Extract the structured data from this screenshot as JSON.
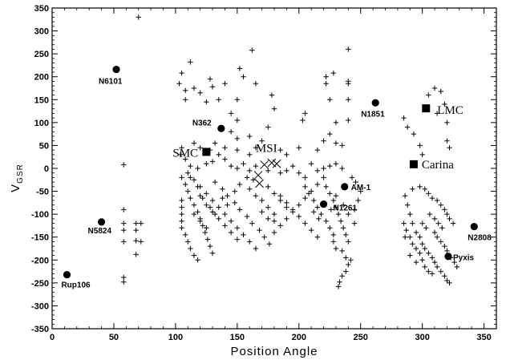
{
  "chart_data": {
    "type": "scatter",
    "xlabel": "Position Angle",
    "ylabel_main": "V",
    "ylabel_sub": "GSR",
    "xlim": [
      0,
      360
    ],
    "ylim": [
      -350,
      350
    ],
    "xticks": [
      0,
      50,
      100,
      150,
      200,
      250,
      300,
      350
    ],
    "yticks": [
      350,
      300,
      250,
      200,
      150,
      100,
      50,
      0,
      -50,
      -100,
      -150,
      -200,
      -250,
      -300,
      -350
    ],
    "clusters": [
      {
        "name": "N6101",
        "x": 52,
        "y": 216
      },
      {
        "name": "N362",
        "x": 137,
        "y": 87
      },
      {
        "name": "N1851",
        "x": 262,
        "y": 143
      },
      {
        "name": "AM-1",
        "x": 237,
        "y": -40
      },
      {
        "name": "N1261",
        "x": 220,
        "y": -78
      },
      {
        "name": "N5824",
        "x": 40,
        "y": -117
      },
      {
        "name": "Rup106",
        "x": 12,
        "y": -232
      },
      {
        "name": "N2808",
        "x": 342,
        "y": -127
      },
      {
        "name": "Pyxis",
        "x": 321,
        "y": -192
      }
    ],
    "dwarfs": [
      {
        "name": "SMC",
        "x": 125,
        "y": 36
      },
      {
        "name": "Carina",
        "x": 293,
        "y": 9
      },
      {
        "name": "LMC",
        "x": 303,
        "y": 131
      }
    ],
    "msi_label": "MSI",
    "msi": [
      [
        167,
        -15
      ],
      [
        172,
        8
      ],
      [
        178,
        12
      ],
      [
        182,
        10
      ],
      [
        168,
        -33
      ]
    ],
    "stars": [
      [
        70,
        330
      ],
      [
        105,
        208
      ],
      [
        112,
        232
      ],
      [
        103,
        185
      ],
      [
        108,
        170
      ],
      [
        115,
        175
      ],
      [
        120,
        165
      ],
      [
        108,
        150
      ],
      [
        128,
        195
      ],
      [
        130,
        178
      ],
      [
        125,
        145
      ],
      [
        140,
        185
      ],
      [
        135,
        150
      ],
      [
        150,
        150
      ],
      [
        152,
        218
      ],
      [
        162,
        258
      ],
      [
        155,
        200
      ],
      [
        165,
        185
      ],
      [
        178,
        160
      ],
      [
        180,
        130
      ],
      [
        205,
        120
      ],
      [
        203,
        105
      ],
      [
        222,
        185
      ],
      [
        222,
        200
      ],
      [
        225,
        150
      ],
      [
        228,
        208
      ],
      [
        230,
        100
      ],
      [
        240,
        260
      ],
      [
        240,
        190
      ],
      [
        240,
        185
      ],
      [
        240,
        150
      ],
      [
        240,
        105
      ],
      [
        145,
        120
      ],
      [
        150,
        105
      ],
      [
        160,
        70
      ],
      [
        170,
        60
      ],
      [
        175,
        90
      ],
      [
        145,
        80
      ],
      [
        150,
        65
      ],
      [
        200,
        45
      ],
      [
        215,
        40
      ],
      [
        220,
        60
      ],
      [
        230,
        55
      ],
      [
        225,
        75
      ],
      [
        235,
        50
      ],
      [
        185,
        40
      ],
      [
        190,
        30
      ],
      [
        160,
        30
      ],
      [
        165,
        45
      ],
      [
        150,
        40
      ],
      [
        140,
        45
      ],
      [
        132,
        55
      ],
      [
        128,
        40
      ],
      [
        120,
        45
      ],
      [
        115,
        55
      ],
      [
        105,
        45
      ],
      [
        104,
        30
      ],
      [
        108,
        20
      ],
      [
        112,
        5
      ],
      [
        118,
        0
      ],
      [
        125,
        10
      ],
      [
        130,
        15
      ],
      [
        135,
        30
      ],
      [
        140,
        20
      ],
      [
        145,
        5
      ],
      [
        150,
        0
      ],
      [
        155,
        10
      ],
      [
        160,
        -5
      ],
      [
        165,
        5
      ],
      [
        175,
        -5
      ],
      [
        185,
        -10
      ],
      [
        190,
        -5
      ],
      [
        195,
        5
      ],
      [
        200,
        -10
      ],
      [
        205,
        -20
      ],
      [
        210,
        10
      ],
      [
        215,
        -5
      ],
      [
        220,
        0
      ],
      [
        225,
        5
      ],
      [
        230,
        10
      ],
      [
        235,
        0
      ],
      [
        58,
        8
      ],
      [
        58,
        -90
      ],
      [
        58,
        -120
      ],
      [
        58,
        -135
      ],
      [
        58,
        -160
      ],
      [
        58,
        -238
      ],
      [
        58,
        -248
      ],
      [
        68,
        -120
      ],
      [
        68,
        -135
      ],
      [
        68,
        -158
      ],
      [
        68,
        -188
      ],
      [
        72,
        -120
      ],
      [
        72,
        -160
      ],
      [
        105,
        -20
      ],
      [
        108,
        -35
      ],
      [
        110,
        -50
      ],
      [
        112,
        -65
      ],
      [
        115,
        -80
      ],
      [
        118,
        -95
      ],
      [
        120,
        -110
      ],
      [
        122,
        -125
      ],
      [
        124,
        -140
      ],
      [
        126,
        -155
      ],
      [
        128,
        -170
      ],
      [
        130,
        -185
      ],
      [
        105,
        -70
      ],
      [
        105,
        -85
      ],
      [
        105,
        -100
      ],
      [
        105,
        -115
      ],
      [
        105,
        -130
      ],
      [
        108,
        -145
      ],
      [
        110,
        -160
      ],
      [
        112,
        -175
      ],
      [
        115,
        -190
      ],
      [
        118,
        -200
      ],
      [
        110,
        -10
      ],
      [
        115,
        -25
      ],
      [
        120,
        -40
      ],
      [
        125,
        -55
      ],
      [
        130,
        -70
      ],
      [
        135,
        -85
      ],
      [
        140,
        -100
      ],
      [
        145,
        -115
      ],
      [
        150,
        -130
      ],
      [
        155,
        -145
      ],
      [
        160,
        -160
      ],
      [
        165,
        -175
      ],
      [
        132,
        -30
      ],
      [
        138,
        -45
      ],
      [
        142,
        -60
      ],
      [
        148,
        -75
      ],
      [
        152,
        -90
      ],
      [
        158,
        -105
      ],
      [
        162,
        -120
      ],
      [
        168,
        -135
      ],
      [
        172,
        -150
      ],
      [
        176,
        -165
      ],
      [
        180,
        -140
      ],
      [
        185,
        -125
      ],
      [
        190,
        -110
      ],
      [
        195,
        -95
      ],
      [
        200,
        -80
      ],
      [
        205,
        -65
      ],
      [
        210,
        -50
      ],
      [
        215,
        -35
      ],
      [
        185,
        -60
      ],
      [
        190,
        -75
      ],
      [
        195,
        -90
      ],
      [
        200,
        -105
      ],
      [
        205,
        -120
      ],
      [
        210,
        -135
      ],
      [
        215,
        -150
      ],
      [
        175,
        -40
      ],
      [
        180,
        -55
      ],
      [
        185,
        -70
      ],
      [
        190,
        -85
      ],
      [
        170,
        -70
      ],
      [
        175,
        -85
      ],
      [
        180,
        -100
      ],
      [
        160,
        -45
      ],
      [
        165,
        -60
      ],
      [
        170,
        -95
      ],
      [
        175,
        -110
      ],
      [
        180,
        -115
      ],
      [
        120,
        -60
      ],
      [
        125,
        -80
      ],
      [
        130,
        -95
      ],
      [
        135,
        -110
      ],
      [
        140,
        -125
      ],
      [
        145,
        -140
      ],
      [
        150,
        -155
      ],
      [
        115,
        -100
      ],
      [
        120,
        -115
      ],
      [
        125,
        -130
      ],
      [
        112,
        -20
      ],
      [
        118,
        -40
      ],
      [
        122,
        -65
      ],
      [
        128,
        -85
      ],
      [
        132,
        -100
      ],
      [
        138,
        -65
      ],
      [
        142,
        -80
      ],
      [
        148,
        -50
      ],
      [
        152,
        -35
      ],
      [
        158,
        -20
      ],
      [
        163,
        -25
      ],
      [
        220,
        -20
      ],
      [
        222,
        -40
      ],
      [
        225,
        -55
      ],
      [
        228,
        -70
      ],
      [
        230,
        -85
      ],
      [
        232,
        -100
      ],
      [
        234,
        -115
      ],
      [
        236,
        -130
      ],
      [
        238,
        -145
      ],
      [
        240,
        -160
      ],
      [
        235,
        -180
      ],
      [
        238,
        -195
      ],
      [
        240,
        -210
      ],
      [
        235,
        -235
      ],
      [
        233,
        -248
      ],
      [
        232,
        -258
      ],
      [
        238,
        -225
      ],
      [
        242,
        -200
      ],
      [
        205,
        -40
      ],
      [
        208,
        -55
      ],
      [
        212,
        -70
      ],
      [
        215,
        -85
      ],
      [
        218,
        -100
      ],
      [
        222,
        -115
      ],
      [
        225,
        -130
      ],
      [
        228,
        -145
      ],
      [
        228,
        -160
      ],
      [
        230,
        -175
      ],
      [
        245,
        -90
      ],
      [
        248,
        -70
      ],
      [
        250,
        -50
      ],
      [
        243,
        -20
      ],
      [
        246,
        -30
      ],
      [
        212,
        -95
      ],
      [
        216,
        -110
      ],
      [
        226,
        -90
      ],
      [
        230,
        -60
      ],
      [
        236,
        -80
      ],
      [
        240,
        -100
      ],
      [
        245,
        -120
      ],
      [
        285,
        110
      ],
      [
        288,
        90
      ],
      [
        293,
        75
      ],
      [
        298,
        50
      ],
      [
        300,
        30
      ],
      [
        305,
        160
      ],
      [
        310,
        175
      ],
      [
        315,
        168
      ],
      [
        318,
        140
      ],
      [
        312,
        120
      ],
      [
        320,
        100
      ],
      [
        320,
        60
      ],
      [
        322,
        45
      ],
      [
        292,
        -45
      ],
      [
        298,
        -40
      ],
      [
        302,
        -45
      ],
      [
        305,
        -55
      ],
      [
        308,
        -65
      ],
      [
        312,
        -70
      ],
      [
        315,
        -80
      ],
      [
        318,
        -90
      ],
      [
        320,
        -100
      ],
      [
        322,
        -110
      ],
      [
        325,
        -120
      ],
      [
        286,
        -60
      ],
      [
        288,
        -80
      ],
      [
        290,
        -100
      ],
      [
        292,
        -120
      ],
      [
        295,
        -140
      ],
      [
        298,
        -150
      ],
      [
        300,
        -165
      ],
      [
        302,
        -175
      ],
      [
        305,
        -185
      ],
      [
        308,
        -195
      ],
      [
        310,
        -205
      ],
      [
        312,
        -215
      ],
      [
        315,
        -225
      ],
      [
        318,
        -235
      ],
      [
        320,
        -245
      ],
      [
        322,
        -250
      ],
      [
        285,
        -120
      ],
      [
        287,
        -135
      ],
      [
        290,
        -150
      ],
      [
        292,
        -165
      ],
      [
        295,
        -175
      ],
      [
        298,
        -185
      ],
      [
        300,
        -200
      ],
      [
        302,
        -215
      ],
      [
        305,
        -225
      ],
      [
        308,
        -230
      ],
      [
        310,
        -140
      ],
      [
        312,
        -150
      ],
      [
        315,
        -160
      ],
      [
        318,
        -170
      ],
      [
        320,
        -180
      ],
      [
        323,
        -195
      ],
      [
        326,
        -205
      ],
      [
        328,
        -215
      ],
      [
        300,
        -120
      ],
      [
        303,
        -130
      ],
      [
        306,
        -100
      ],
      [
        310,
        -110
      ],
      [
        313,
        -120
      ],
      [
        316,
        -130
      ],
      [
        286,
        -150
      ],
      [
        290,
        -190
      ],
      [
        295,
        -205
      ]
    ]
  }
}
